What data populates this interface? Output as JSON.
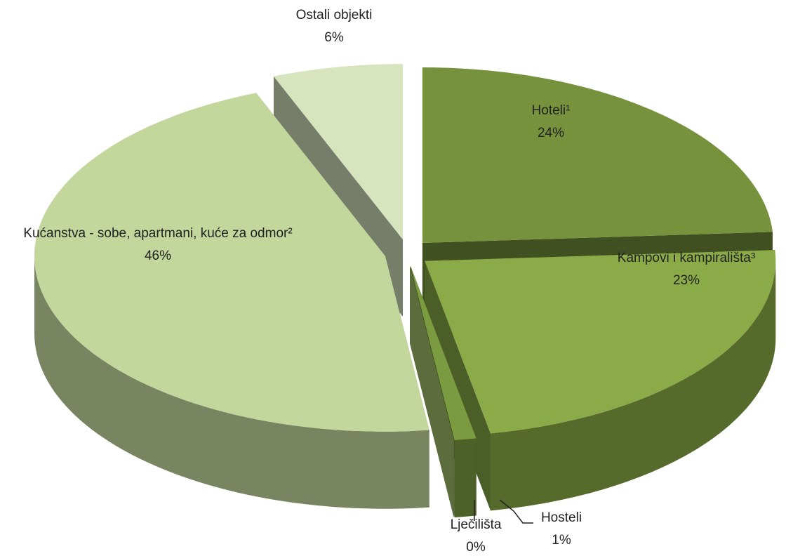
{
  "chart_data": {
    "type": "pie",
    "categories": [
      "Hoteli¹",
      "Kampovi i kampirališta³",
      "Hosteli",
      "Lječilišta",
      "Kućanstva - sobe, apartmani, kuće za odmor²",
      "Ostali objekti"
    ],
    "values": [
      24,
      23,
      1,
      0,
      46,
      6
    ],
    "value_labels": [
      "24%",
      "23%",
      "1%",
      "0%",
      "46%",
      "6%"
    ],
    "colors": [
      "#76923c",
      "#8aab47",
      "#7a9b40",
      "#a9c46f",
      "#c3d69b",
      "#d7e4bd"
    ]
  }
}
